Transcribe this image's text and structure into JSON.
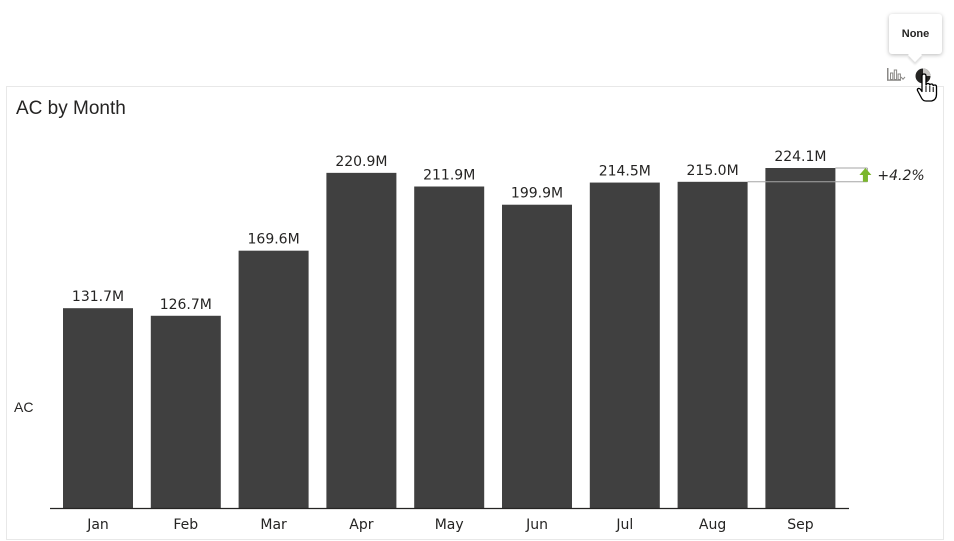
{
  "tooltip": {
    "label": "None"
  },
  "header_icons": {
    "chart_type_icon": "bar-chart-icon",
    "theme_icon": "circle-icon",
    "cursor": "hand-pointer-icon"
  },
  "visual": {
    "title": "AC by Month",
    "y_axis_title": "AC"
  },
  "chart_data": {
    "type": "bar",
    "title": "AC by Month",
    "xlabel": "",
    "ylabel": "AC",
    "categories": [
      "Jan",
      "Feb",
      "Mar",
      "Apr",
      "May",
      "Jun",
      "Jul",
      "Aug",
      "Sep"
    ],
    "series": [
      {
        "values": [
          131.7,
          126.7,
          169.6,
          220.9,
          211.9,
          199.9,
          214.5,
          215.0,
          224.1
        ],
        "labels": [
          "131.7M",
          "126.7M",
          "169.6M",
          "220.9M",
          "211.9M",
          "199.9M",
          "214.5M",
          "215.0M",
          "224.1M"
        ]
      }
    ],
    "unit": "M",
    "ylim": [
      0,
      224.1
    ],
    "grid": false,
    "legend": "none",
    "variance": {
      "from": "Aug",
      "to": "Sep",
      "label": "+4.2%",
      "direction": "up"
    }
  },
  "colors": {
    "bar": "#404040",
    "variance_arrow": "#7ab72b",
    "bracket": "#a6a6a6",
    "axis": "#252423"
  }
}
